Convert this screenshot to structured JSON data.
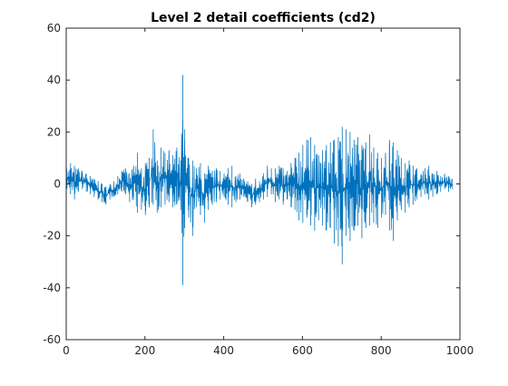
{
  "chart_data": {
    "type": "line",
    "title": "Level 2 detail coefficients (cd2)",
    "xlabel": "",
    "ylabel": "",
    "xlim": [
      0,
      1000
    ],
    "ylim": [
      -60,
      60
    ],
    "x_ticks": [
      0,
      200,
      400,
      600,
      800,
      1000
    ],
    "y_ticks": [
      -60,
      -40,
      -20,
      0,
      20,
      40,
      60
    ],
    "x_tick_labels": [
      "0",
      "200",
      "400",
      "600",
      "800",
      "1000"
    ],
    "y_tick_labels": [
      "-60",
      "-40",
      "-20",
      "0",
      "20",
      "40",
      "60"
    ],
    "grid": false,
    "legend": "none",
    "series_color": "#0072BD",
    "series": [
      {
        "x_start": 1,
        "x_step": 10,
        "envelope_note_free": true,
        "x": [
          1,
          11,
          21,
          31,
          41,
          51,
          61,
          71,
          81,
          91,
          101,
          111,
          121,
          131,
          141,
          151,
          161,
          171,
          181,
          191,
          201,
          211,
          221,
          231,
          241,
          251,
          261,
          271,
          281,
          291,
          296,
          301,
          311,
          321,
          331,
          341,
          351,
          361,
          371,
          381,
          391,
          401,
          411,
          421,
          431,
          441,
          451,
          461,
          471,
          481,
          491,
          501,
          511,
          521,
          531,
          541,
          551,
          561,
          571,
          581,
          591,
          601,
          611,
          621,
          631,
          641,
          651,
          661,
          671,
          681,
          691,
          701,
          711,
          721,
          731,
          741,
          751,
          761,
          771,
          781,
          791,
          801,
          811,
          821,
          831,
          841,
          851,
          861,
          871,
          881,
          891,
          901,
          911,
          921,
          931,
          941,
          951,
          961,
          971,
          981
        ],
        "y_max": [
          6,
          8,
          7,
          6,
          5,
          4,
          3,
          2,
          1,
          0,
          -1,
          0,
          1,
          3,
          5,
          6,
          4,
          7,
          12,
          6,
          8,
          10,
          21,
          9,
          14,
          12,
          13,
          11,
          14,
          9,
          42,
          21,
          10,
          9,
          6,
          8,
          4,
          7,
          5,
          6,
          5,
          4,
          6,
          7,
          3,
          4,
          2,
          1,
          0,
          2,
          1,
          4,
          7,
          6,
          6,
          7,
          6,
          5,
          8,
          10,
          12,
          15,
          17,
          18,
          15,
          11,
          13,
          15,
          16,
          17,
          18,
          22,
          21,
          20,
          17,
          18,
          15,
          16,
          19,
          14,
          12,
          10,
          12,
          17,
          16,
          13,
          10,
          8,
          9,
          7,
          6,
          4,
          6,
          7,
          4,
          5,
          3,
          4,
          3,
          2
        ],
        "y_min": [
          -2,
          -4,
          -6,
          -3,
          -2,
          -3,
          -4,
          -5,
          -6,
          -7,
          -8,
          -6,
          -5,
          -4,
          -3,
          -4,
          -7,
          -6,
          -11,
          -10,
          -12,
          -9,
          -8,
          -11,
          -9,
          -8,
          -7,
          -9,
          -8,
          -10,
          -39,
          -17,
          -13,
          -20,
          -9,
          -12,
          -15,
          -10,
          -8,
          -7,
          -6,
          -5,
          -8,
          -9,
          -7,
          -6,
          -5,
          -7,
          -9,
          -8,
          -7,
          -6,
          -5,
          -4,
          -7,
          -6,
          -8,
          -6,
          -9,
          -10,
          -14,
          -15,
          -13,
          -16,
          -18,
          -14,
          -16,
          -18,
          -17,
          -23,
          -24,
          -31,
          -20,
          -22,
          -18,
          -16,
          -21,
          -17,
          -16,
          -15,
          -17,
          -13,
          -12,
          -18,
          -22,
          -14,
          -10,
          -11,
          -9,
          -8,
          -6,
          -5,
          -4,
          -6,
          -5,
          -4,
          -3,
          -2,
          -3,
          -2
        ]
      }
    ]
  }
}
